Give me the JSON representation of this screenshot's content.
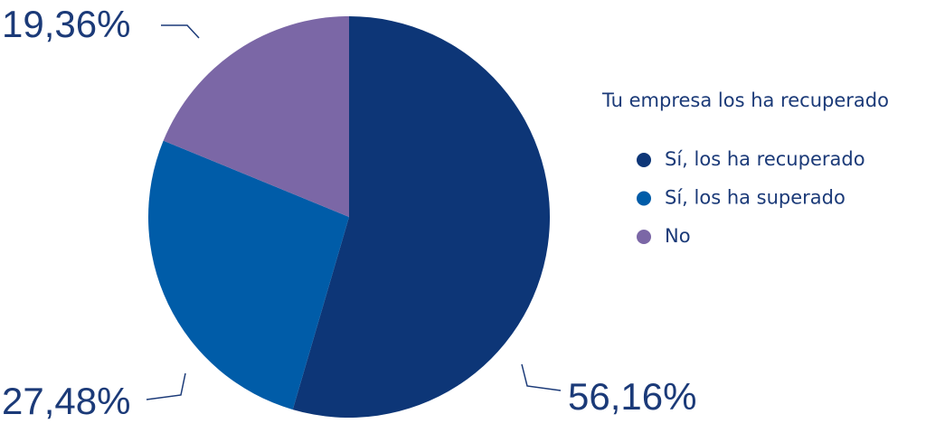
{
  "chart_data": {
    "type": "pie",
    "legend_title": "Tu empresa los ha recuperado",
    "categories": [
      "Sí, los ha recuperado",
      "Sí, los ha superado",
      "No"
    ],
    "values": [
      56.16,
      27.48,
      19.36
    ],
    "value_labels": [
      "56,16%",
      "27,48%",
      "19,36%"
    ],
    "colors": [
      "#0d3677",
      "#005ca8",
      "#7b67a6"
    ],
    "legend": "right"
  }
}
